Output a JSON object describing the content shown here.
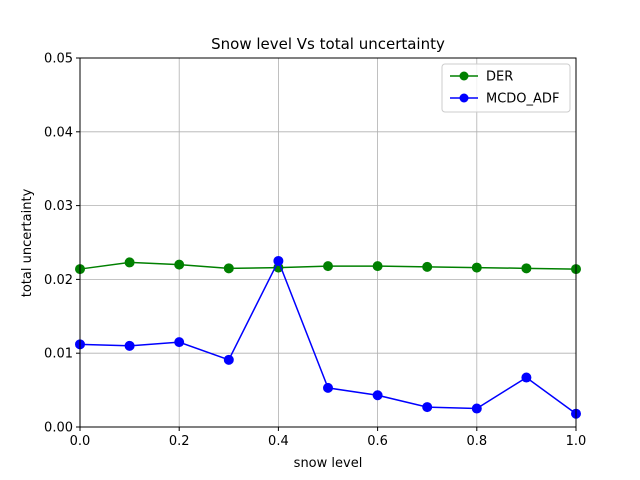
{
  "chart_data": {
    "type": "line",
    "title": "Snow level Vs total uncertainty",
    "xlabel": "snow level",
    "ylabel": "total uncertainty",
    "xlim": [
      0.0,
      1.0
    ],
    "ylim": [
      0.0,
      0.05
    ],
    "xticks": [
      "0.0",
      "0.2",
      "0.4",
      "0.6",
      "0.8",
      "1.0"
    ],
    "yticks": [
      "0.00",
      "0.01",
      "0.02",
      "0.03",
      "0.04",
      "0.05"
    ],
    "grid": true,
    "legend_position": "top-right",
    "x": [
      0.0,
      0.1,
      0.2,
      0.3,
      0.4,
      0.5,
      0.6,
      0.7,
      0.8,
      0.9,
      1.0
    ],
    "series": [
      {
        "name": "DER",
        "color": "#008000",
        "marker": "circle",
        "values": [
          0.0214,
          0.0223,
          0.022,
          0.0215,
          0.0216,
          0.0218,
          0.0218,
          0.0217,
          0.0216,
          0.0215,
          0.0214
        ]
      },
      {
        "name": "MCDO_ADF",
        "color": "#0000ff",
        "marker": "circle",
        "values": [
          0.0112,
          0.011,
          0.0115,
          0.0091,
          0.0225,
          0.0053,
          0.0043,
          0.0027,
          0.0025,
          0.0067,
          0.0018
        ]
      }
    ]
  }
}
